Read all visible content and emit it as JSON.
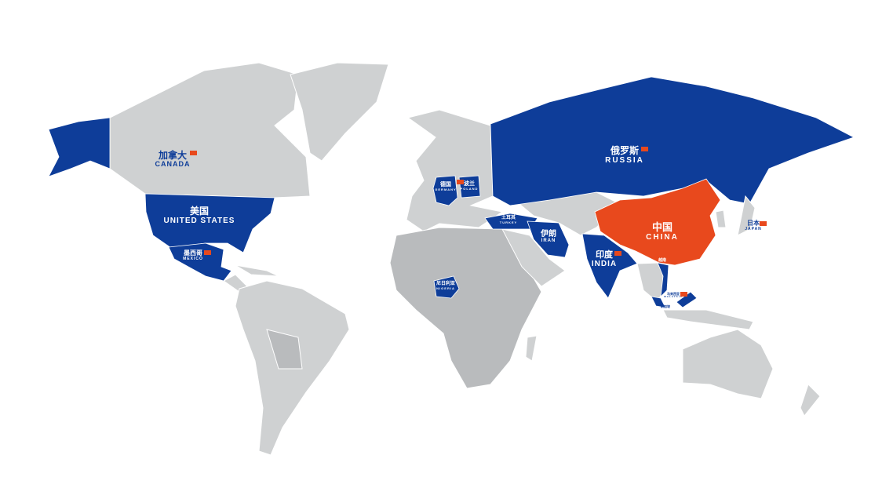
{
  "map": {
    "colors": {
      "land": "#cfd1d2",
      "highlight": "#0e3d99",
      "home": "#e8491d"
    },
    "countries": {
      "canada": {
        "zh": "加拿大",
        "en": "CANADA"
      },
      "usa": {
        "zh": "美国",
        "en": "UNITED STATES"
      },
      "mexico": {
        "zh": "墨西哥",
        "en": "MEXICO"
      },
      "russia": {
        "zh": "俄罗斯",
        "en": "RUSSIA"
      },
      "germany": {
        "zh": "德国",
        "en": "GERMANY"
      },
      "poland": {
        "zh": "波兰",
        "en": "POLAND"
      },
      "turkey": {
        "zh": "土耳其",
        "en": "TURKEY"
      },
      "iran": {
        "zh": "伊朗",
        "en": "IRAN"
      },
      "india": {
        "zh": "印度",
        "en": "INDIA"
      },
      "china": {
        "zh": "中国",
        "en": "CHINA"
      },
      "japan": {
        "zh": "日本",
        "en": "JAPAN"
      },
      "vietnam": {
        "zh": "越南"
      },
      "malaysia": {
        "zh": "马来西亚",
        "en": "MALAYSIA"
      },
      "singapore": {
        "zh": "新加坡"
      },
      "nigeria": {
        "zh": "尼日利亚",
        "en": "NIGERIA"
      }
    }
  }
}
